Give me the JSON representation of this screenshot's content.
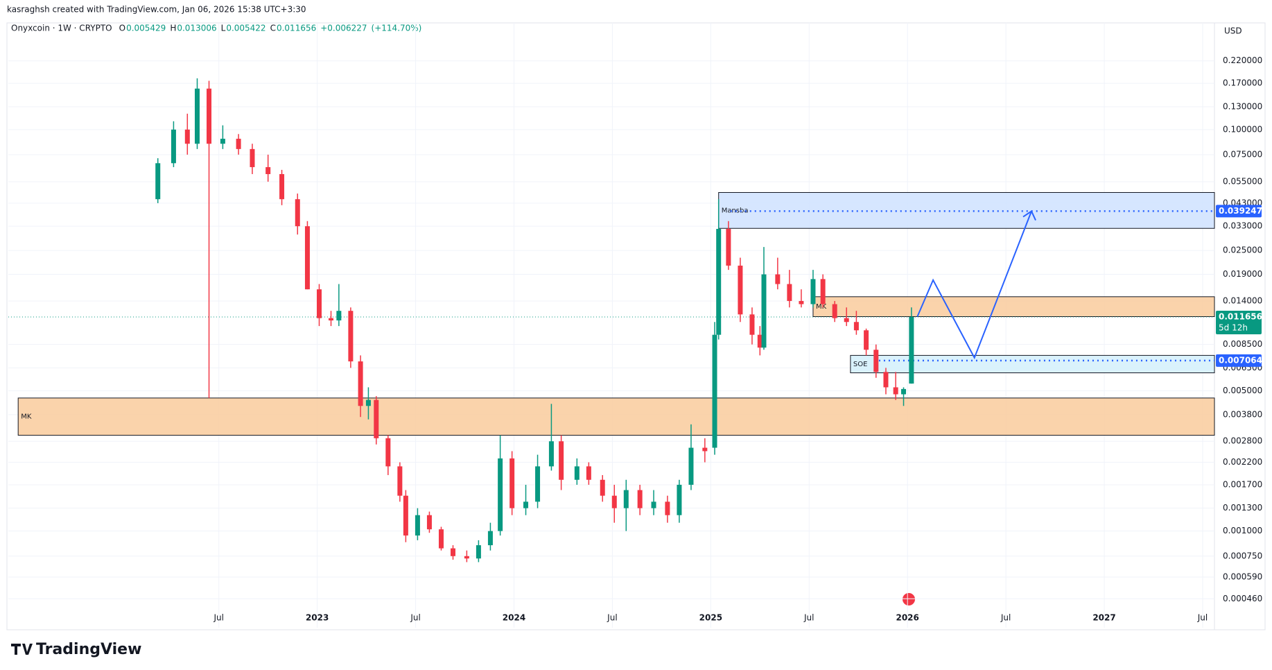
{
  "author_line": "kasraghsh created with TradingView.com, Jan 06, 2026 15:38 UTC+3:30",
  "footer": "TradingView",
  "chart_data": {
    "type": "candlestick",
    "title": "Onyxcoin · 1W · CRYPTO",
    "legend_values": [
      {
        "key": "O",
        "value": 0.005429
      },
      {
        "key": "H",
        "value": 0.013006
      },
      {
        "key": "L",
        "value": 0.005422
      },
      {
        "key": "C",
        "value": 0.011656
      }
    ],
    "change": "+0.006227",
    "change_pct": "(+114.70%)",
    "currency": "USD",
    "log_scale": true,
    "grid": true,
    "up_color": "#089981",
    "down_color": "#f23645",
    "xlim": [
      2021.43,
      2027.56
    ],
    "xticks": [
      {
        "value": 2022.5,
        "label": "Jul"
      },
      2023,
      {
        "value": 2023.5,
        "label": "Jul"
      },
      2024,
      {
        "value": 2024.5,
        "label": "Jul"
      },
      2025,
      {
        "value": 2025.5,
        "label": "Jul"
      },
      2026,
      {
        "value": 2026.5,
        "label": "Jul"
      },
      2027,
      {
        "value": 2027.5,
        "label": "Jul"
      }
    ],
    "ylim": [
      0.00033,
      0.34
    ],
    "yticks": [
      {
        "value": 0.22,
        "label": "0.220000"
      },
      {
        "value": 0.17,
        "label": "0.170000"
      },
      {
        "value": 0.13,
        "label": "0.130000"
      },
      {
        "value": 0.1,
        "label": "0.100000"
      },
      {
        "value": 0.075,
        "label": "0.075000"
      },
      {
        "value": 0.055,
        "label": "0.055000"
      },
      {
        "value": 0.043,
        "label": "0.043000"
      },
      {
        "value": 0.033,
        "label": "0.033000"
      },
      {
        "value": 0.025,
        "label": "0.025000"
      },
      {
        "value": 0.019,
        "label": "0.019000"
      },
      {
        "value": 0.014,
        "label": "0.014000"
      },
      {
        "value": 0.0085,
        "label": "0.008500"
      },
      {
        "value": 0.0065,
        "label": "0.006500"
      },
      {
        "value": 0.005,
        "label": "0.005000"
      },
      {
        "value": 0.0038,
        "label": "0.003800"
      },
      {
        "value": 0.0028,
        "label": "0.002800"
      },
      {
        "value": 0.0022,
        "label": "0.002200"
      },
      {
        "value": 0.0017,
        "label": "0.001700"
      },
      {
        "value": 0.0013,
        "label": "0.001300"
      },
      {
        "value": 0.001,
        "label": "0.001000"
      },
      {
        "value": 0.00075,
        "label": "0.000750"
      },
      {
        "value": 0.00059,
        "label": "0.000590"
      },
      {
        "value": 0.00046,
        "label": "0.000460"
      }
    ],
    "x": [
      2022.19,
      2022.27,
      2022.34,
      2022.39,
      2022.45,
      2022.52,
      2022.6,
      2022.67,
      2022.75,
      2022.82,
      2022.9,
      2022.95,
      2023.01,
      2023.07,
      2023.11,
      2023.17,
      2023.22,
      2023.26,
      2023.3,
      2023.36,
      2023.42,
      2023.45,
      2023.51,
      2023.57,
      2023.63,
      2023.69,
      2023.76,
      2023.82,
      2023.88,
      2023.93,
      2023.99,
      2024.06,
      2024.12,
      2024.19,
      2024.24,
      2024.32,
      2024.38,
      2024.45,
      2024.51,
      2024.57,
      2024.64,
      2024.71,
      2024.78,
      2024.84,
      2024.9,
      2024.97,
      2025.02,
      2025.04,
      2025.09,
      2025.15,
      2025.21,
      2025.25,
      2025.27,
      2025.34,
      2025.4,
      2025.46,
      2025.52,
      2025.57,
      2025.63,
      2025.69,
      2025.74,
      2025.79,
      2025.84,
      2025.89,
      2025.94,
      2025.98,
      2026.02
    ],
    "open": [
      0.045,
      0.068,
      0.1,
      0.085,
      0.16,
      0.085,
      0.09,
      0.08,
      0.065,
      0.06,
      0.045,
      0.033,
      0.016,
      0.0115,
      0.0112,
      0.0125,
      0.007,
      0.0042,
      0.0045,
      0.0029,
      0.0021,
      0.0015,
      0.00095,
      0.0012,
      0.00102,
      0.00082,
      0.00075,
      0.00073,
      0.00085,
      0.001,
      0.0023,
      0.0013,
      0.0014,
      0.0021,
      0.0028,
      0.0018,
      0.0021,
      0.0018,
      0.0015,
      0.0013,
      0.0016,
      0.0013,
      0.0014,
      0.0012,
      0.0017,
      0.0026,
      0.0026,
      0.0095,
      0.032,
      0.021,
      0.012,
      0.0095,
      0.0082,
      0.019,
      0.017,
      0.014,
      0.0135,
      0.018,
      0.0135,
      0.0115,
      0.011,
      0.01,
      0.008,
      0.0062,
      0.0052,
      0.0048,
      0.005429
    ],
    "high": [
      0.072,
      0.11,
      0.12,
      0.18,
      0.175,
      0.105,
      0.095,
      0.085,
      0.075,
      0.063,
      0.048,
      0.035,
      0.017,
      0.0125,
      0.017,
      0.013,
      0.0075,
      0.0052,
      0.0047,
      0.003,
      0.0022,
      0.0016,
      0.0013,
      0.00125,
      0.00105,
      0.00085,
      0.0008,
      0.0009,
      0.0011,
      0.003,
      0.0025,
      0.0017,
      0.0024,
      0.0043,
      0.003,
      0.0023,
      0.0022,
      0.0019,
      0.0017,
      0.0018,
      0.0017,
      0.0016,
      0.0015,
      0.0018,
      0.0034,
      0.0029,
      0.011,
      0.045,
      0.035,
      0.023,
      0.013,
      0.0105,
      0.026,
      0.023,
      0.02,
      0.016,
      0.02,
      0.019,
      0.014,
      0.013,
      0.0125,
      0.0102,
      0.0085,
      0.0065,
      0.0062,
      0.0052,
      0.013006
    ],
    "low": [
      0.043,
      0.065,
      0.075,
      0.08,
      0.0046,
      0.08,
      0.075,
      0.06,
      0.055,
      0.042,
      0.03,
      0.016,
      0.0105,
      0.0105,
      0.0105,
      0.0065,
      0.0037,
      0.0036,
      0.0027,
      0.0019,
      0.0014,
      0.00088,
      0.0009,
      0.00098,
      0.0008,
      0.00072,
      0.0007,
      0.0007,
      0.0008,
      0.00095,
      0.0012,
      0.0012,
      0.0013,
      0.002,
      0.0016,
      0.0017,
      0.0017,
      0.0014,
      0.0011,
      0.001,
      0.0012,
      0.0012,
      0.0011,
      0.0011,
      0.0016,
      0.0022,
      0.0024,
      0.009,
      0.02,
      0.011,
      0.0085,
      0.0075,
      0.008,
      0.016,
      0.013,
      0.013,
      0.013,
      0.013,
      0.011,
      0.0105,
      0.0095,
      0.0075,
      0.0058,
      0.0048,
      0.0045,
      0.0042,
      0.005422
    ],
    "close": [
      0.068,
      0.1,
      0.085,
      0.16,
      0.085,
      0.09,
      0.08,
      0.065,
      0.06,
      0.045,
      0.033,
      0.016,
      0.0115,
      0.0112,
      0.0125,
      0.007,
      0.0042,
      0.0045,
      0.0029,
      0.0021,
      0.0015,
      0.00095,
      0.0012,
      0.00102,
      0.00082,
      0.00075,
      0.00073,
      0.00085,
      0.001,
      0.0023,
      0.0013,
      0.0014,
      0.0021,
      0.0028,
      0.0018,
      0.0021,
      0.0018,
      0.0015,
      0.0013,
      0.0016,
      0.0013,
      0.0014,
      0.0012,
      0.0017,
      0.0026,
      0.0025,
      0.0095,
      0.032,
      0.021,
      0.012,
      0.0095,
      0.0082,
      0.019,
      0.017,
      0.014,
      0.0135,
      0.018,
      0.0135,
      0.0115,
      0.011,
      0.01,
      0.008,
      0.0062,
      0.0052,
      0.0048,
      0.0051,
      0.011656
    ],
    "zones": [
      {
        "label": "MK",
        "x": [
          2021.48,
          2027.56
        ],
        "y": [
          0.003,
          0.0046
        ],
        "color": "#f9cb9c"
      },
      {
        "label": "Mansba",
        "x": [
          2025.04,
          2027.56
        ],
        "y": [
          0.0322,
          0.0486
        ],
        "color": "#cfe2ff"
      },
      {
        "label": "MK",
        "x": [
          2025.52,
          2027.56
        ],
        "y": [
          0.0117,
          0.0147
        ],
        "color": "#f9cb9c"
      },
      {
        "label": "SOE",
        "x": [
          2025.71,
          2027.56
        ],
        "y": [
          0.00614,
          0.0075
        ],
        "color": "#d4f0fb"
      }
    ],
    "levels": [
      {
        "value": 0.039247,
        "from": 2025.1,
        "color": "#2962ff"
      },
      {
        "value": 0.011656,
        "from": 2021.43,
        "color": "#089981",
        "countdown": "5d 12h"
      },
      {
        "value": 0.007064,
        "from": 2025.83,
        "color": "#2962ff"
      }
    ],
    "projection": {
      "x": [
        2026.05,
        2026.13,
        2026.34,
        2026.63
      ],
      "y": [
        0.0117,
        0.0178,
        0.0073,
        0.0392
      ],
      "color": "#2962ff"
    }
  }
}
